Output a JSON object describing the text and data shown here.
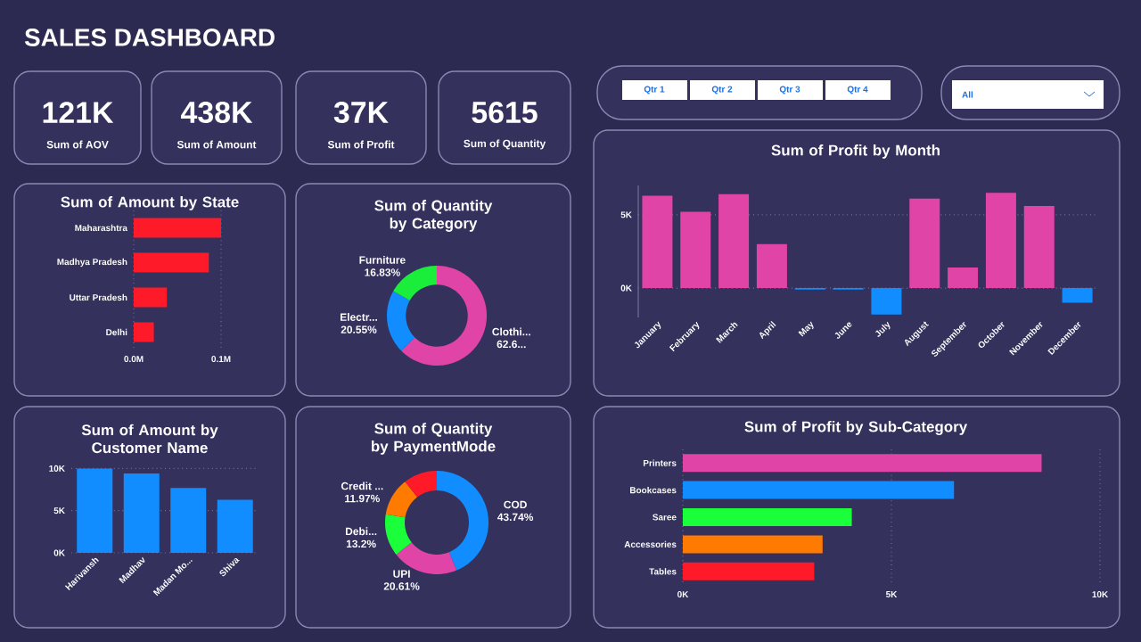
{
  "chart_data": [
    {
      "type": "other",
      "title": "SALES DASHBOARD",
      "annotations": [
        "121K",
        "Sum of AOV",
        "438K",
        "Sum of Amount",
        "37K",
        "Sum of Profit",
        "5615",
        "Sum of Quantity"
      ]
    },
    {
      "type": "other",
      "annotations": [
        "Qtr 1",
        "Qtr 2",
        "Qtr 3",
        "Qtr 4",
        "All"
      ]
    },
    {
      "type": "bar",
      "orientation": "horizontal",
      "title": "Sum of Amount by State",
      "categories": [
        "Maharashtra",
        "Madhya Pradesh",
        "Uttar Pradesh",
        "Delhi"
      ],
      "values": [
        100000,
        86000,
        38000,
        23000
      ],
      "color": "#ff1a2a",
      "xlim": [
        0,
        100000
      ],
      "xticks": [
        {
          "value": 0,
          "label": "0.0M"
        },
        {
          "value": 100000,
          "label": "0.1M"
        }
      ],
      "grid": "x"
    },
    {
      "type": "donut",
      "title": "Sum of Quantity by Category",
      "categories": [
        "Clothi...",
        "Electr...",
        "Furniture"
      ],
      "values": [
        62.62,
        20.55,
        16.83
      ],
      "value_labels": [
        "62.6...",
        "20.55%",
        "16.83%"
      ],
      "colors": [
        "#e044a7",
        "#118dff",
        "#1aee3a"
      ]
    },
    {
      "type": "bar",
      "title": "Sum of Profit by Month",
      "categories": [
        "January",
        "February",
        "March",
        "April",
        "May",
        "June",
        "July",
        "August",
        "September",
        "October",
        "November",
        "December"
      ],
      "values": [
        6300,
        5200,
        6400,
        3000,
        -100,
        -100,
        -1800,
        6100,
        1400,
        6500,
        5600,
        -1000
      ],
      "colors": [
        "#e044a7",
        "#e044a7",
        "#e044a7",
        "#e044a7",
        "#118dff",
        "#118dff",
        "#118dff",
        "#e044a7",
        "#e044a7",
        "#e044a7",
        "#e044a7",
        "#118dff"
      ],
      "ylim": [
        -2000,
        7000
      ],
      "yticks": [
        {
          "value": 0,
          "label": "0K"
        },
        {
          "value": 5000,
          "label": "5K"
        }
      ],
      "grid": "y"
    },
    {
      "type": "bar",
      "title": "Sum of Amount by Customer Name",
      "categories": [
        "Harivansh",
        "Madhav",
        "Madan Mo...",
        "Shiva"
      ],
      "values": [
        10000,
        9400,
        7700,
        6300
      ],
      "color": "#118dff",
      "ylim": [
        0,
        10000
      ],
      "yticks": [
        {
          "value": 0,
          "label": "0K"
        },
        {
          "value": 5000,
          "label": "5K"
        },
        {
          "value": 10000,
          "label": "10K"
        }
      ],
      "grid": "y"
    },
    {
      "type": "donut",
      "title": "Sum of Quantity by PaymentMode",
      "categories": [
        "COD",
        "UPI",
        "Debi...",
        "Credit ...",
        null
      ],
      "values": [
        43.74,
        20.61,
        13.2,
        11.97,
        10.48
      ],
      "value_labels": [
        "43.74%",
        "20.61%",
        "13.2%",
        "11.97%",
        null
      ],
      "colors": [
        "#118dff",
        "#e044a7",
        "#1aff3a",
        "#ff7a00",
        "#ff1a2a"
      ]
    },
    {
      "type": "bar",
      "orientation": "horizontal",
      "title": "Sum of Profit by Sub-Category",
      "categories": [
        "Printers",
        "Bookcases",
        "Saree",
        "Accessories",
        "Tables"
      ],
      "values": [
        8600,
        6500,
        4050,
        3350,
        3150
      ],
      "colors": [
        "#e044a7",
        "#118dff",
        "#1aff3a",
        "#ff7a00",
        "#ff1a2a"
      ],
      "xlim": [
        0,
        10000
      ],
      "xticks": [
        {
          "value": 0,
          "label": "0K"
        },
        {
          "value": 5000,
          "label": "5K"
        },
        {
          "value": 10000,
          "label": "10K"
        }
      ],
      "grid": "x"
    }
  ]
}
